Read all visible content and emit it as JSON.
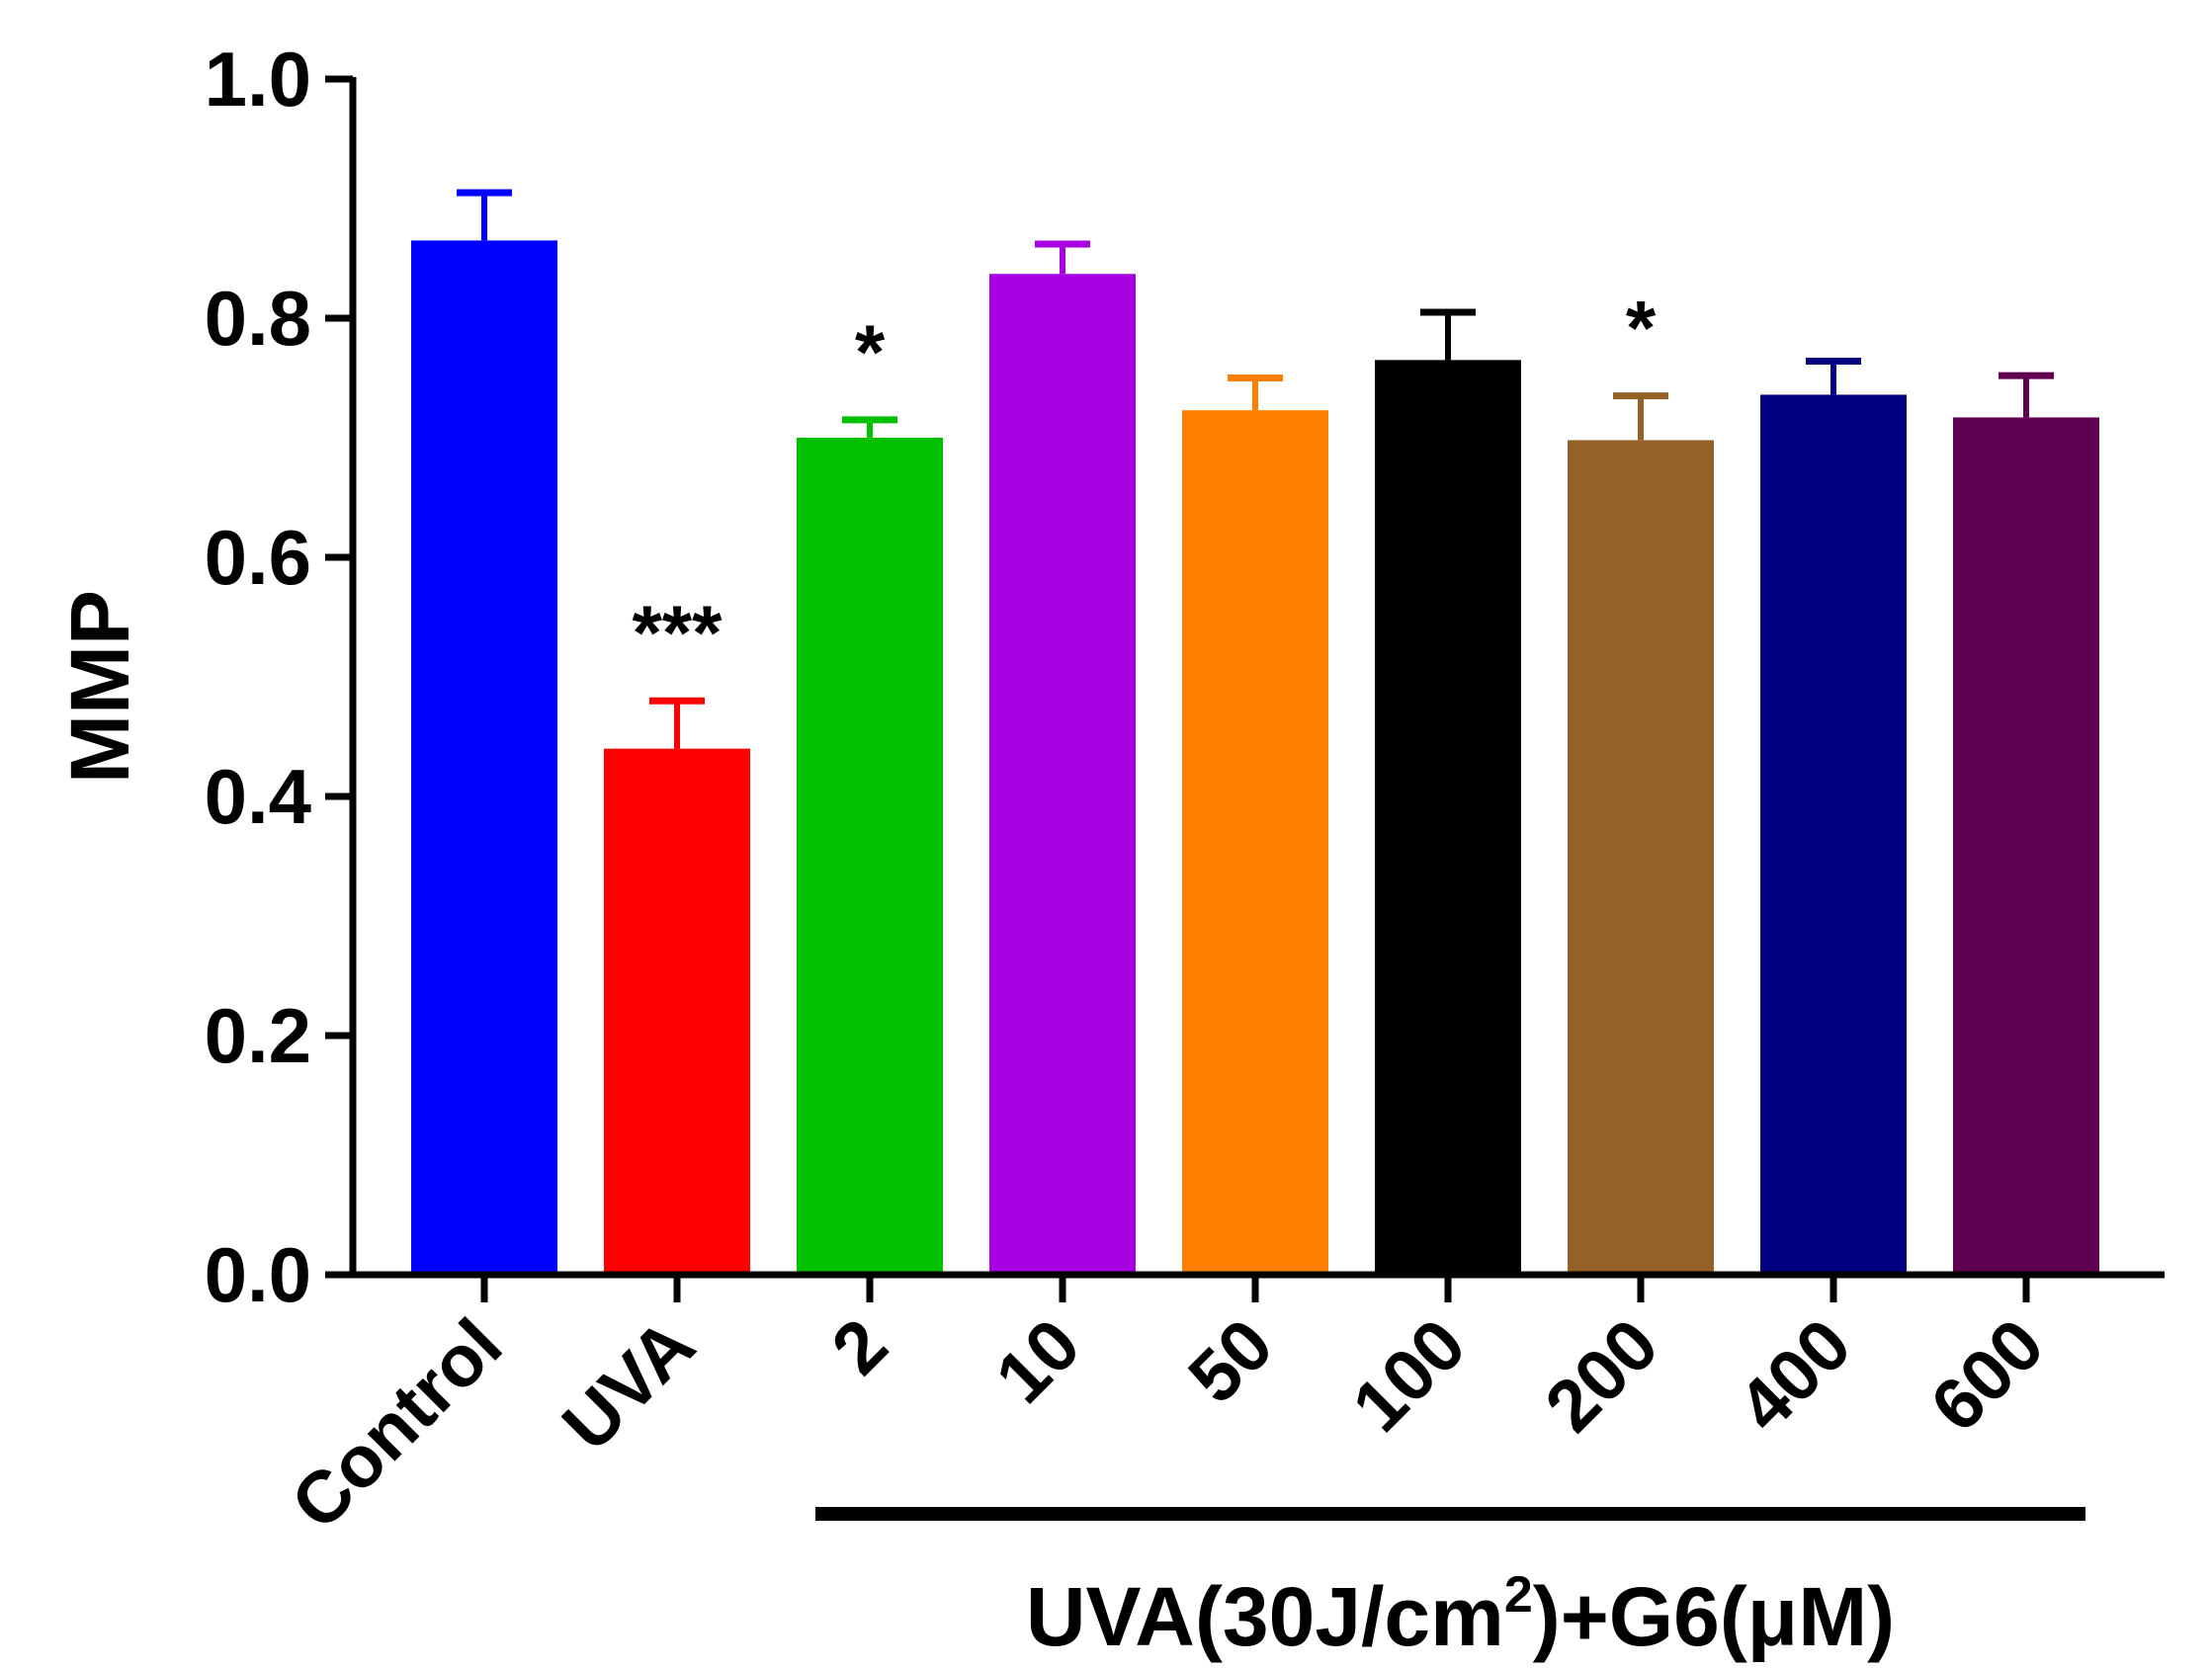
{
  "chart_data": {
    "type": "bar",
    "title": "",
    "xlabel": "",
    "ylabel": "MMP",
    "ylim": [
      0,
      1.0
    ],
    "yticks": [
      0.0,
      0.2,
      0.4,
      0.6,
      0.8,
      1.0
    ],
    "ytick_labels": [
      "0.0",
      "0.2",
      "0.4",
      "0.6",
      "0.8",
      "1.0"
    ],
    "grid": false,
    "categories": [
      "Control",
      "UVA",
      "2",
      "10",
      "50",
      "100",
      "200",
      "400",
      "600"
    ],
    "values": [
      0.865,
      0.44,
      0.7,
      0.837,
      0.723,
      0.765,
      0.698,
      0.736,
      0.717
    ],
    "errors": [
      0.04,
      0.04,
      0.015,
      0.025,
      0.027,
      0.04,
      0.037,
      0.028,
      0.035
    ],
    "colors": [
      "#0000FF",
      "#FF0000",
      "#00C000",
      "#A800E0",
      "#FF8000",
      "#000000",
      "#946226",
      "#000080",
      "#600050"
    ],
    "significance": [
      "",
      "***",
      "*",
      "",
      "",
      "",
      "*",
      "",
      ""
    ],
    "group_bracket": {
      "label_prefix": "UVA(30J/cm",
      "label_sup": "2",
      "label_suffix": ")+G6(μM)",
      "first_category": "2",
      "last_category": "600"
    }
  }
}
